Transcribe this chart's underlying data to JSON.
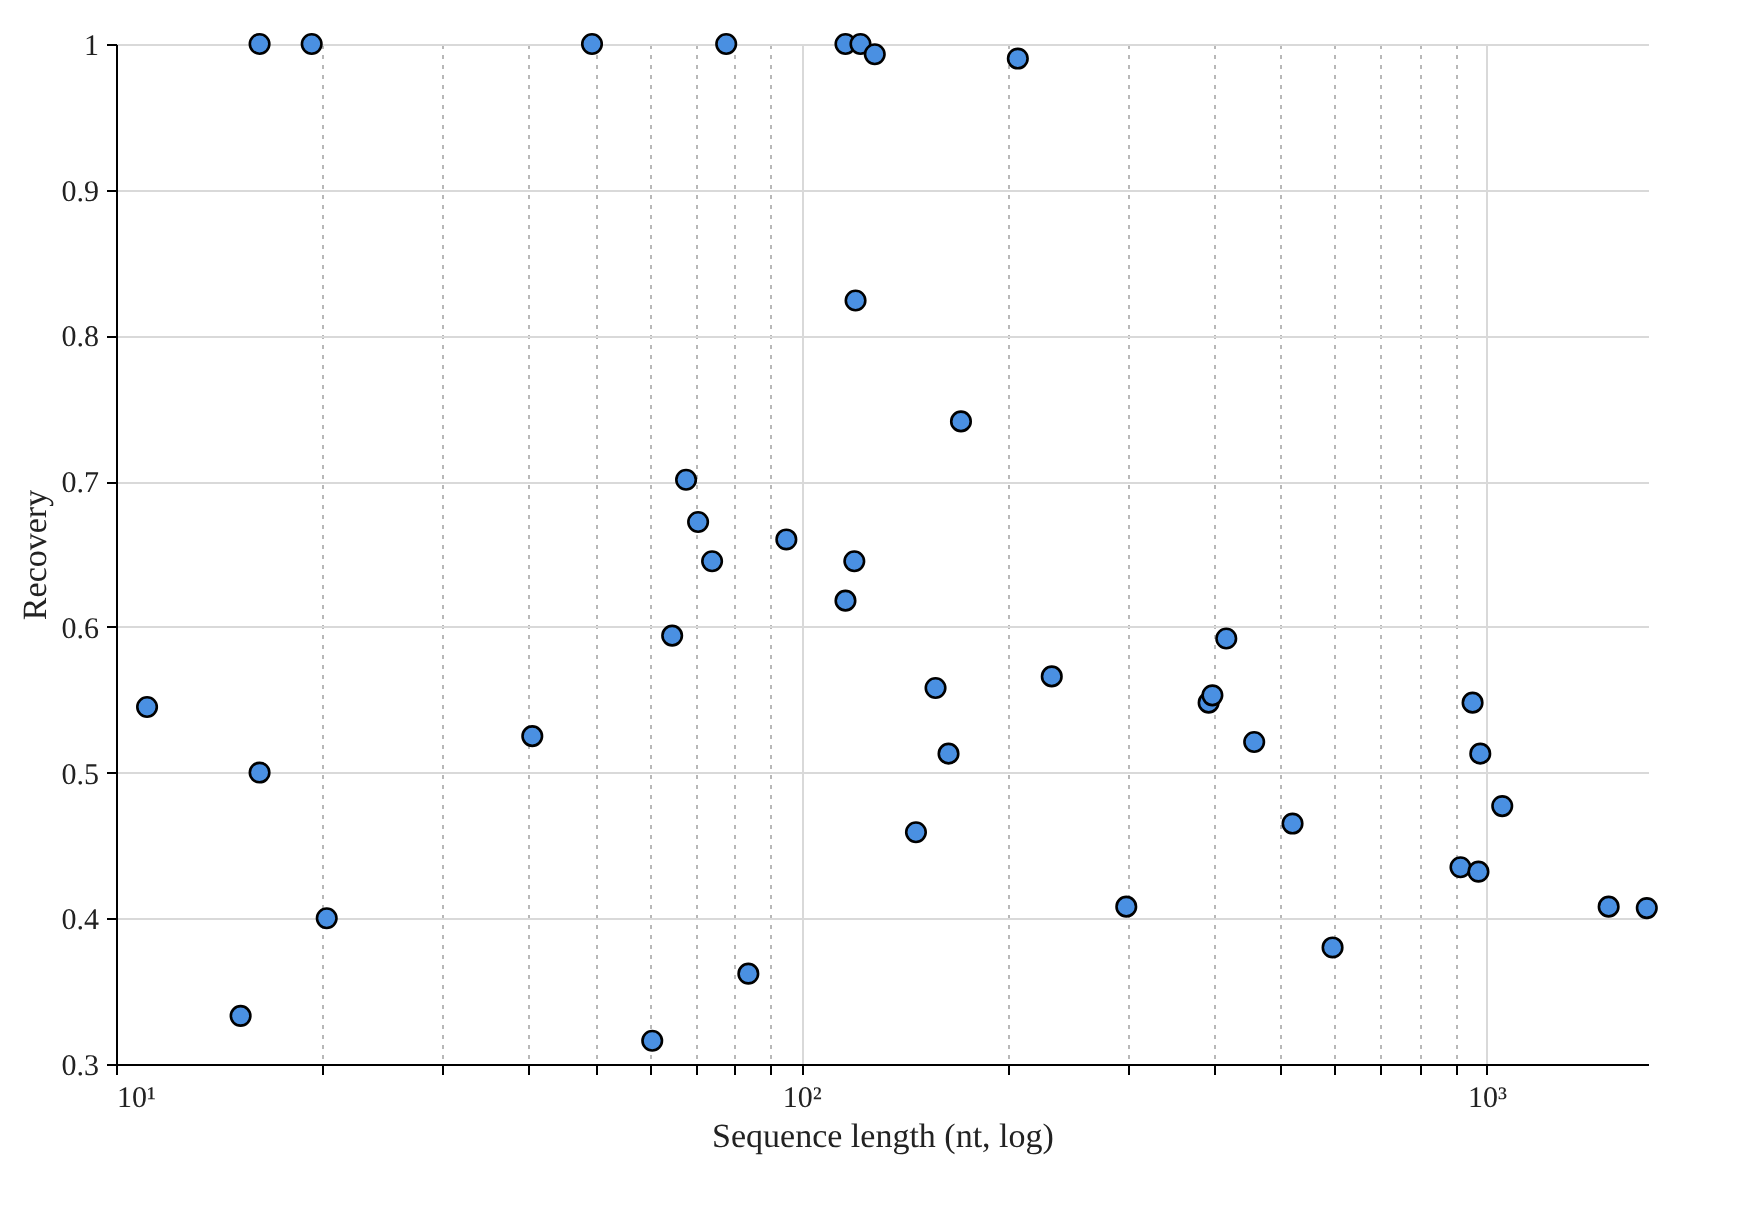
{
  "chart_data": {
    "type": "scatter",
    "xlabel": "Sequence length (nt, log)",
    "ylabel": "Recovery",
    "log": "x",
    "grid": true,
    "marker": "circle",
    "xlim": [
      10,
      1720
    ],
    "ylim": [
      0.3,
      1
    ],
    "xticks": [
      {
        "value": 10,
        "label": "10¹"
      },
      {
        "value": 20,
        "label": null
      },
      {
        "value": 30,
        "label": null
      },
      {
        "value": 40,
        "label": null
      },
      {
        "value": 50,
        "label": null
      },
      {
        "value": 60,
        "label": null
      },
      {
        "value": 70,
        "label": null
      },
      {
        "value": 80,
        "label": null
      },
      {
        "value": 90,
        "label": null
      },
      {
        "value": 100,
        "label": "10²"
      },
      {
        "value": 200,
        "label": null
      },
      {
        "value": 300,
        "label": null
      },
      {
        "value": 400,
        "label": null
      },
      {
        "value": 500,
        "label": null
      },
      {
        "value": 600,
        "label": null
      },
      {
        "value": 700,
        "label": null
      },
      {
        "value": 800,
        "label": null
      },
      {
        "value": 900,
        "label": null
      },
      {
        "value": 1000,
        "label": "10³"
      }
    ],
    "yticks": [
      0.3,
      0.4,
      0.5,
      0.6,
      0.7,
      0.8,
      0.9,
      1
    ],
    "series": [
      {
        "color": "#4a90e2",
        "x": [
          11.1,
          15.2,
          16.2,
          16.2,
          19.3,
          20.3,
          40.5,
          49.5,
          60.6,
          64.8,
          67.9,
          70.7,
          74.1,
          77.7,
          83.7,
          95.1,
          116,
          116,
          119.5,
          120,
          122,
          128,
          147,
          157,
          164,
          171,
          207,
          232,
          298,
          393,
          398,
          417,
          458,
          521,
          596,
          916,
          954,
          973,
          979,
          1054,
          1507,
          1713
        ],
        "values": [
          0.545,
          0.333,
          1,
          0.5,
          1,
          0.4,
          0.525,
          1,
          0.316,
          0.594,
          0.701,
          0.672,
          0.645,
          1,
          0.362,
          0.66,
          1,
          0.618,
          0.645,
          0.824,
          1,
          0.993,
          0.459,
          0.558,
          0.513,
          0.741,
          0.99,
          0.566,
          0.408,
          0.548,
          0.553,
          0.592,
          0.521,
          0.465,
          0.38,
          0.435,
          0.548,
          0.432,
          0.513,
          0.477,
          0.408,
          0.407
        ]
      }
    ]
  }
}
